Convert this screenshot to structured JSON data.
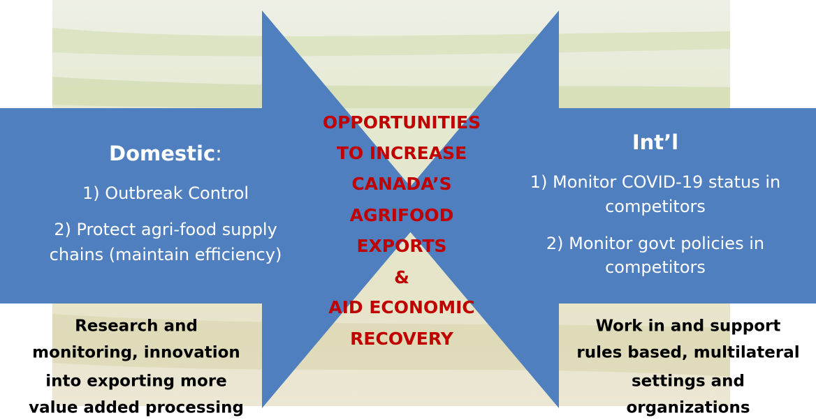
{
  "center": {
    "lines": [
      "OPPORTUNITIES",
      "TO INCREASE",
      "CANADA’S",
      "AGRIFOOD",
      "EXPORTS",
      "&",
      "AID ECONOMIC",
      "RECOVERY"
    ]
  },
  "left": {
    "title": "Domestic",
    "title_suffix": ":",
    "lines": [
      "1) Outbreak Control",
      "2) Protect agri-food supply",
      "chains (maintain efficiency)"
    ],
    "note": [
      "Research and",
      "monitoring, innovation",
      "into exporting more",
      "value added processing"
    ]
  },
  "right": {
    "title": "Int’l",
    "lines": [
      "1) Monitor COVID-19 status in",
      "competitors",
      "2) Monitor govt policies in",
      "competitors"
    ],
    "note": [
      "Work in and support",
      "rules based, multilateral",
      "settings and",
      "organizations"
    ]
  }
}
